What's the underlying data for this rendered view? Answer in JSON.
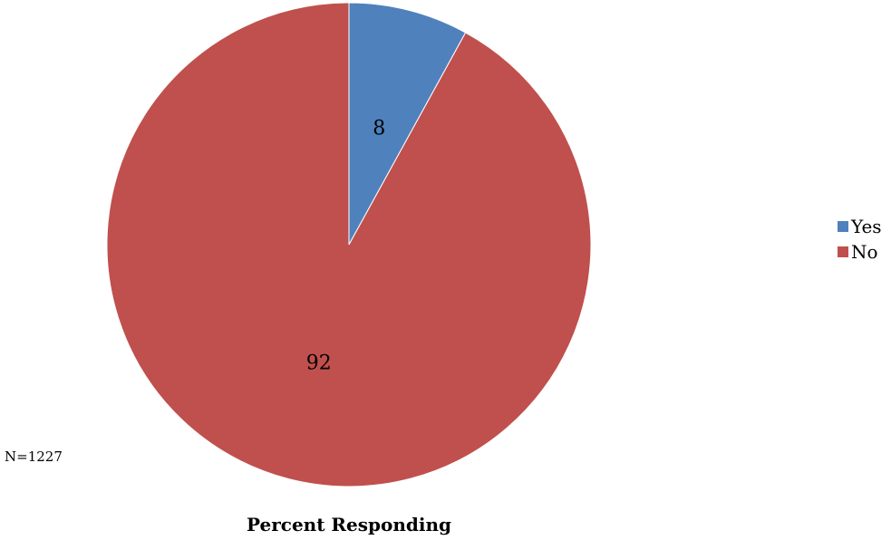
{
  "chart_data": {
    "type": "pie",
    "title": "Percent Responding",
    "note": "N=1227",
    "slices": [
      {
        "label": "Yes",
        "value": 8,
        "color": "#4F81BD"
      },
      {
        "label": "No",
        "value": 92,
        "color": "#C0504D"
      }
    ],
    "start_angle_deg": 0,
    "direction": "clockwise",
    "legend_position": "right"
  },
  "legend": {
    "items": [
      {
        "label": "Yes",
        "color": "#4F81BD"
      },
      {
        "label": "No",
        "color": "#C0504D"
      }
    ]
  }
}
